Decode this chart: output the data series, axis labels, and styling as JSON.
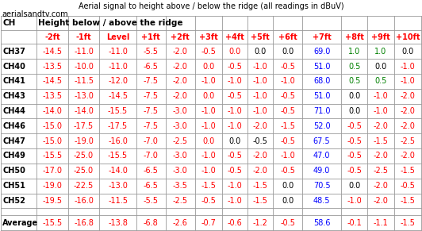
{
  "title": "Aerial signal to height above / below the ridge (all readings in dBuV)",
  "website": "aerialsandtv.com",
  "col_header_row1": "Height below / above the ridge",
  "columns": [
    "CH",
    "-2ft",
    "-1ft",
    "Level",
    "+1ft",
    "+2ft",
    "+3ft",
    "+4ft",
    "+5ft",
    "+6ft",
    "+7ft",
    "+8ft",
    "+9ft",
    "+10ft"
  ],
  "rows": [
    [
      "CH37",
      "-14.5",
      "-11.0",
      "-11.0",
      "-5.5",
      "-2.0",
      "-0.5",
      "0.0",
      "0.0",
      "0.0",
      "69.0",
      "1.0",
      "1.0",
      "0.0"
    ],
    [
      "CH40",
      "-13.5",
      "-10.0",
      "-11.0",
      "-6.5",
      "-2.0",
      "0.0",
      "-0.5",
      "-1.0",
      "-0.5",
      "51.0",
      "0.5",
      "0.0",
      "-1.0"
    ],
    [
      "CH41",
      "-14.5",
      "-11.5",
      "-12.0",
      "-7.5",
      "-2.0",
      "-1.0",
      "-1.0",
      "-1.0",
      "-1.0",
      "68.0",
      "0.5",
      "0.5",
      "-1.0"
    ],
    [
      "CH43",
      "-13.5",
      "-13.0",
      "-14.5",
      "-7.5",
      "-2.0",
      "0.0",
      "-0.5",
      "-1.0",
      "-0.5",
      "51.0",
      "0.0",
      "-1.0",
      "-2.0"
    ],
    [
      "CH44",
      "-14.0",
      "-14.0",
      "-15.5",
      "-7.5",
      "-3.0",
      "-1.0",
      "-1.0",
      "-1.0",
      "-0.5",
      "71.0",
      "0.0",
      "-1.0",
      "-2.0"
    ],
    [
      "CH46",
      "-15.0",
      "-17.5",
      "-17.5",
      "-7.5",
      "-3.0",
      "-1.0",
      "-1.0",
      "-2.0",
      "-1.5",
      "52.0",
      "-0.5",
      "-2.0",
      "-2.0"
    ],
    [
      "CH47",
      "-15.0",
      "-19.0",
      "-16.0",
      "-7.0",
      "-2.5",
      "0.0",
      "0.0",
      "-0.5",
      "-0.5",
      "67.5",
      "-0.5",
      "-1.5",
      "-2.5"
    ],
    [
      "CH49",
      "-15.5",
      "-25.0",
      "-15.5",
      "-7.0",
      "-3.0",
      "-1.0",
      "-0.5",
      "-2.0",
      "-1.0",
      "47.0",
      "-0.5",
      "-2.0",
      "-2.0"
    ],
    [
      "CH50",
      "-17.0",
      "-25.0",
      "-14.0",
      "-6.5",
      "-3.0",
      "-1.0",
      "-0.5",
      "-2.0",
      "-0.5",
      "49.0",
      "-0.5",
      "-2.5",
      "-1.5"
    ],
    [
      "CH51",
      "-19.0",
      "-22.5",
      "-13.0",
      "-6.5",
      "-3.5",
      "-1.5",
      "-1.0",
      "-1.5",
      "0.0",
      "70.5",
      "0.0",
      "-2.0",
      "-0.5"
    ],
    [
      "CH52",
      "-19.5",
      "-16.0",
      "-11.5",
      "-5.5",
      "-2.5",
      "-0.5",
      "-1.0",
      "-1.5",
      "0.0",
      "48.5",
      "-1.0",
      "-2.0",
      "-1.5"
    ]
  ],
  "avg_row": [
    "Average",
    "-15.5",
    "-16.8",
    "-13.8",
    "-6.8",
    "-2.6",
    "-0.7",
    "-0.6",
    "-1.2",
    "-0.5",
    "58.6",
    "-0.1",
    "-1.1",
    "-1.5"
  ],
  "col_7_colors": [
    "red",
    "red",
    "red",
    "red",
    "red",
    "red",
    "black",
    "red",
    "red",
    "red",
    "red"
  ],
  "col_8_colors": [
    "black",
    "red",
    "red",
    "red",
    "red",
    "red",
    "black",
    "red",
    "red",
    "red",
    "red"
  ],
  "col_9_colors": [
    "black",
    "red",
    "red",
    "red",
    "red",
    "red",
    "red",
    "red",
    "red",
    "black",
    "black"
  ],
  "col_11_colors": [
    "green",
    "green",
    "green",
    "black",
    "black",
    "red",
    "red",
    "red",
    "red",
    "black",
    "red"
  ],
  "col_12_colors": [
    "green",
    "black",
    "green",
    "red",
    "red",
    "red",
    "red",
    "red",
    "red",
    "red",
    "red"
  ],
  "col_13_colors": [
    "black",
    "red",
    "red",
    "red",
    "red",
    "red",
    "red",
    "red",
    "red",
    "red",
    "red"
  ],
  "avg_colors": [
    "black",
    "red",
    "red",
    "red",
    "red",
    "red",
    "red",
    "red",
    "red",
    "red",
    "blue",
    "red",
    "red",
    "red"
  ],
  "grid_color": "#999999",
  "bg_color": "#ffffff"
}
